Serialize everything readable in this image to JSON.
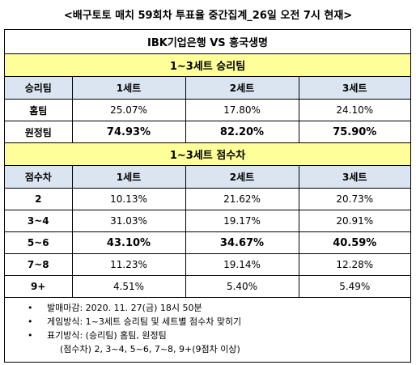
{
  "title": "<배구토토 매치 59회차 투표율 중간집계_26일 오전 7시 현재>",
  "match": "IBK기업은행 VS 흥국생명",
  "sections": [
    {
      "title": "1~3세트 승리팀",
      "header": [
        "승리팀",
        "1세트",
        "2세트",
        "3세트"
      ],
      "rows": [
        [
          "홈팀",
          "25.07%",
          "17.80%",
          "24.10%"
        ],
        [
          "원정팀",
          "74.93%",
          "82.20%",
          "75.90%"
        ]
      ]
    },
    {
      "title": "1~3세트 점수차",
      "header": [
        "점수차",
        "1세트",
        "2세트",
        "3세트"
      ],
      "rows": [
        [
          "2",
          "10.13%",
          "21.62%",
          "20.73%"
        ],
        [
          "3~4",
          "31.03%",
          "19.17%",
          "20.91%"
        ],
        [
          "5~6",
          "43.10%",
          "34.67%",
          "40.59%"
        ],
        [
          "7~8",
          "11.23%",
          "19.14%",
          "12.28%"
        ],
        [
          "9+",
          "4.51%",
          "5.40%",
          "5.49%"
        ]
      ]
    }
  ],
  "notes": [
    "발매마감: 2020. 11. 27(금) 18시 50분",
    "게임방식: 1~3세트 승리팀 및 세트별 점수차 맞히기",
    "표기방식: (승리팀) 홈팀, 원정팀",
    "(점수차) 2, 3~4, 5~6, 7~8, 9+(9점차 이상)"
  ]
}
